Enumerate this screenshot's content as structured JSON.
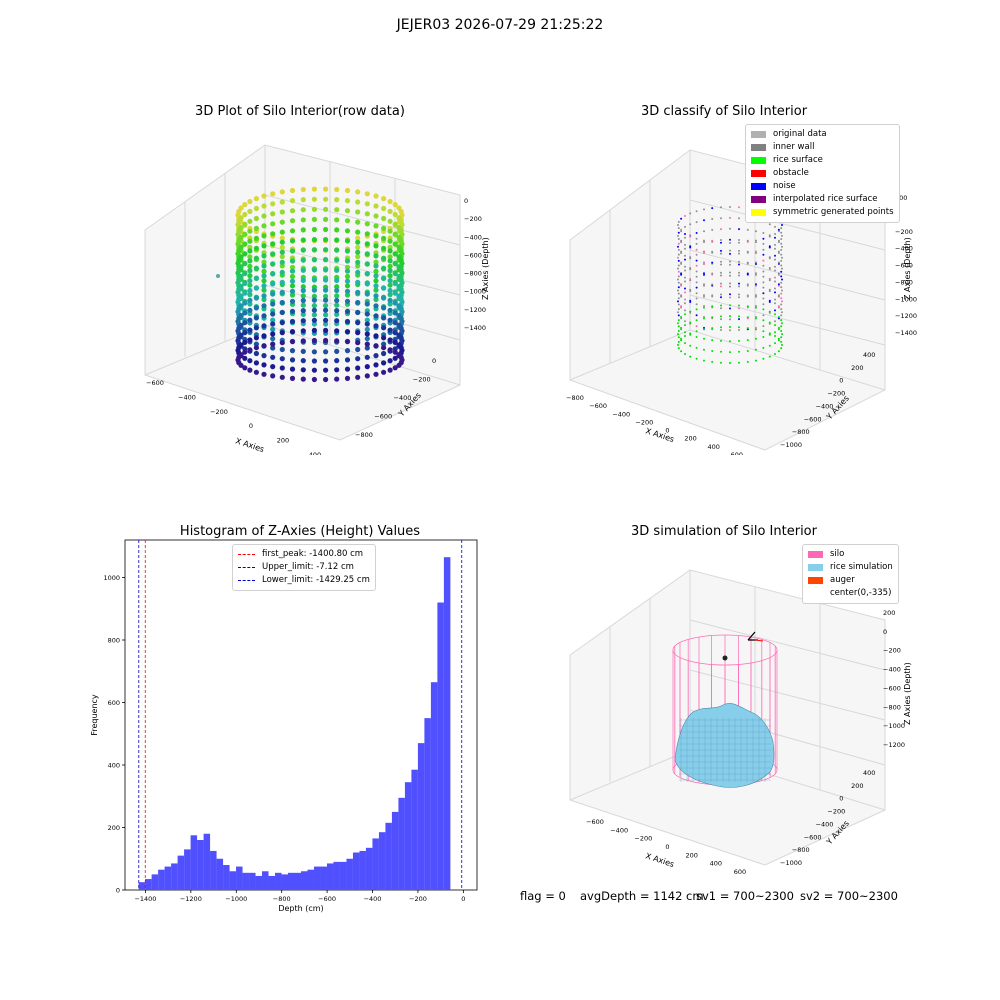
{
  "figure": {
    "suptitle": "JEJER03 2026-07-29 21:25:22",
    "status": {
      "flag": "flag = 0",
      "avg_depth": "avgDepth = 1142 cm",
      "sv1": "sv1 = 700~2300",
      "sv2": "sv2 = 700~2300"
    }
  },
  "colors": {
    "bar": "#5050ff",
    "silo": "#ff69b4",
    "rice_sim": "#87ceeb",
    "auger": "#ff4500",
    "first_peak": "#ff0000",
    "limits": "#0000cc"
  },
  "chart_data": [
    {
      "type": "scatter",
      "kind": "3d",
      "title": "3D Plot of Silo Interior(row data)",
      "xlabel": "X Axies",
      "ylabel": "Y Axies",
      "zlabel": "Z Axies (Depth)",
      "x_ticks": [
        "−600",
        "−400",
        "−200",
        "0",
        "200",
        "400"
      ],
      "y_ticks": [
        "−800",
        "−600",
        "−400",
        "−200",
        "0"
      ],
      "z_ticks": [
        "0",
        "−200",
        "−400",
        "−600",
        "−800",
        "−1000",
        "−1200",
        "−1400"
      ]
    },
    {
      "type": "scatter",
      "kind": "3d",
      "title": "3D classify of Silo Interior",
      "xlabel": "X Axies",
      "ylabel": "Y Axies",
      "zlabel": "Z Axies (Depth)",
      "x_ticks": [
        "−800",
        "−600",
        "−400",
        "−200",
        "0",
        "200",
        "400",
        "600",
        "800"
      ],
      "y_ticks": [
        "−1000",
        "−800",
        "−600",
        "−400",
        "−200",
        "0",
        "200",
        "400"
      ],
      "z_ticks": [
        "200",
        "0",
        "−200",
        "−400",
        "−600",
        "−800",
        "−1000",
        "−1200",
        "−1400"
      ],
      "legend": [
        {
          "label": "original data",
          "color": "#b0b0b0"
        },
        {
          "label": "inner wall",
          "color": "#808080"
        },
        {
          "label": "rice surface",
          "color": "#00ff00"
        },
        {
          "label": "obstacle",
          "color": "#ff0000"
        },
        {
          "label": "noise",
          "color": "#0000ff"
        },
        {
          "label": "interpolated rice surface",
          "color": "#800080"
        },
        {
          "label": "symmetric generated points",
          "color": "#ffff00"
        }
      ]
    },
    {
      "type": "bar",
      "kind": "histogram",
      "title": "Histogram of Z-Axies (Height) Values",
      "xlabel": "Depth (cm)",
      "ylabel": "Frequency",
      "xlim": [
        -1490,
        60
      ],
      "ylim": [
        0,
        1120
      ],
      "x_ticks": [
        -1400,
        -1200,
        -1000,
        -800,
        -600,
        -400,
        -200,
        0
      ],
      "x_tick_labels": [
        "−1400",
        "−1200",
        "−1000",
        "−800",
        "−600",
        "−400",
        "−200",
        "0"
      ],
      "y_ticks": [
        0,
        200,
        400,
        600,
        800,
        1000
      ],
      "bin_start": -1430,
      "bin_width": 28.6,
      "values": [
        25,
        35,
        50,
        65,
        75,
        85,
        110,
        130,
        175,
        160,
        180,
        125,
        100,
        80,
        60,
        75,
        55,
        55,
        45,
        60,
        45,
        55,
        50,
        55,
        55,
        60,
        65,
        75,
        75,
        85,
        90,
        90,
        100,
        120,
        125,
        135,
        165,
        185,
        215,
        250,
        295,
        345,
        385,
        470,
        550,
        665,
        920,
        1065
      ],
      "vlines": [
        {
          "label": "first_peak: -1400.80 cm",
          "x": -1400.8,
          "color": "#ff0000"
        },
        {
          "label": "Upper_limit: -7.12 cm",
          "x": -7.12,
          "color": "#0000cc"
        },
        {
          "label": "Lower_limit: -1429.25 cm",
          "x": -1429.25,
          "color": "#0000cc"
        }
      ]
    },
    {
      "type": "area",
      "kind": "3d-surface",
      "title": "3D simulation of Silo Interior",
      "xlabel": "X Axies",
      "ylabel": "Y Axies",
      "zlabel": "Z Axies (Depth)",
      "x_ticks": [
        "−600",
        "−400",
        "−200",
        "0",
        "200",
        "400",
        "600"
      ],
      "y_ticks": [
        "−1000",
        "−800",
        "−600",
        "−400",
        "−200",
        "0",
        "200",
        "400"
      ],
      "z_ticks": [
        "200",
        "0",
        "−200",
        "−400",
        "−600",
        "−800",
        "−1000",
        "−1200"
      ],
      "legend": [
        {
          "label": "silo",
          "color": "#ff69b4"
        },
        {
          "label": "rice simulation",
          "color": "#87ceeb"
        },
        {
          "label": "auger",
          "color": "#ff4500"
        },
        {
          "label": "center(0,-335)",
          "color": ""
        }
      ]
    }
  ]
}
